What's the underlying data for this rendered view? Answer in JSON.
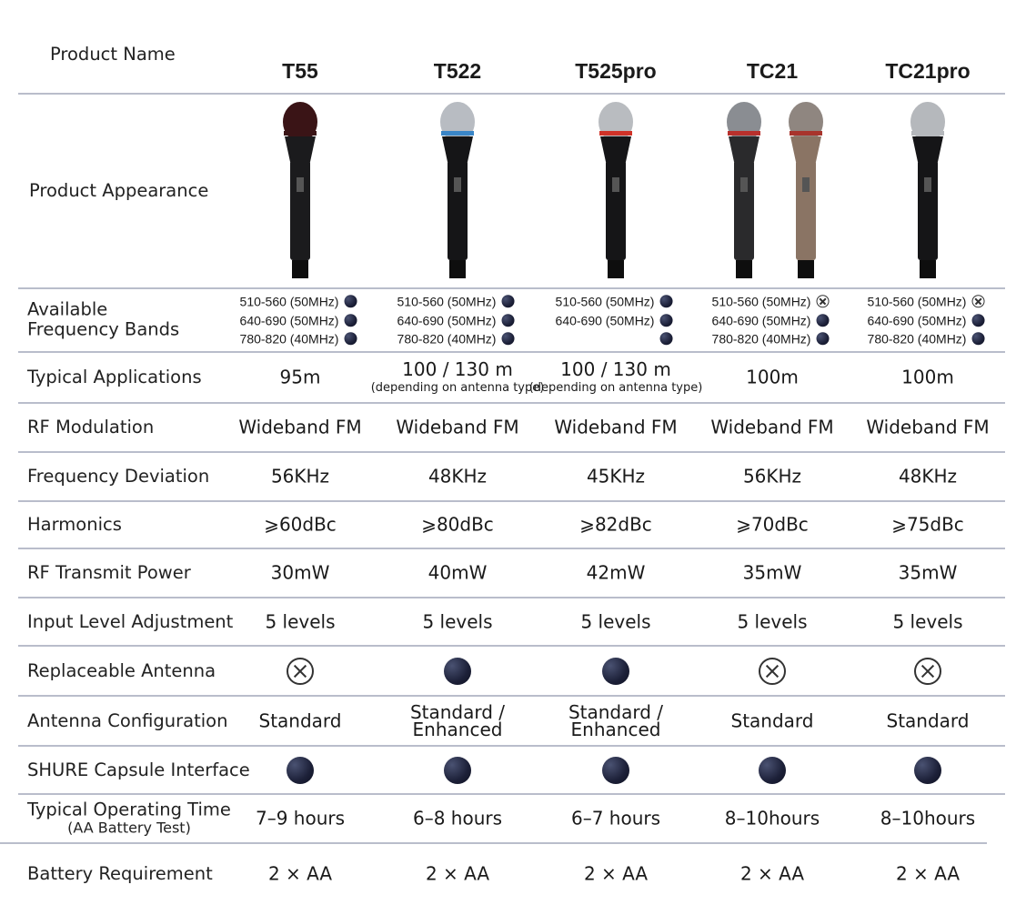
{
  "columns": [
    "T55",
    "T522",
    "T525pro",
    "TC21",
    "TC21pro"
  ],
  "header_label": "Product Name",
  "appearance_label": "Product Appearance",
  "mics": [
    [
      {
        "grille": "#3a1416",
        "ring": "#3a1416",
        "body": "#1b1b1d"
      }
    ],
    [
      {
        "grille": "#b8bcc2",
        "ring": "#3a86c8",
        "body": "#151517"
      }
    ],
    [
      {
        "grille": "#b9bcc0",
        "ring": "#d03228",
        "body": "#151517"
      }
    ],
    [
      {
        "grille": "#8a8d92",
        "ring": "#b8302c",
        "body": "#2a2a2c"
      },
      {
        "grille": "#8f8680",
        "ring": "#a8342c",
        "body": "#8a7464"
      }
    ],
    [
      {
        "grille": "#b5b8bc",
        "ring": "#b5b8bc",
        "body": "#151517"
      }
    ]
  ],
  "freq": {
    "label": "Available\nFrequency Bands",
    "values": [
      [
        {
          "t": "510-560 (50MHz)",
          "s": "dot"
        },
        {
          "t": "640-690 (50MHz)",
          "s": "dot"
        },
        {
          "t": "780-820 (40MHz)",
          "s": "dot"
        }
      ],
      [
        {
          "t": "510-560 (50MHz)",
          "s": "dot"
        },
        {
          "t": "640-690 (50MHz)",
          "s": "dot"
        },
        {
          "t": "780-820 (40MHz)",
          "s": "dot"
        }
      ],
      [
        {
          "t": "510-560 (50MHz)",
          "s": "dot"
        },
        {
          "t": "640-690 (50MHz)",
          "s": "dot"
        },
        {
          "t": "",
          "s": "dot"
        }
      ],
      [
        {
          "t": "510-560 (50MHz)",
          "s": "cross"
        },
        {
          "t": "640-690 (50MHz)",
          "s": "dot"
        },
        {
          "t": "780-820 (40MHz)",
          "s": "dot"
        }
      ],
      [
        {
          "t": "510-560 (50MHz)",
          "s": "cross"
        },
        {
          "t": "640-690 (50MHz)",
          "s": "dot"
        },
        {
          "t": "780-820 (40MHz)",
          "s": "dot"
        }
      ]
    ]
  },
  "rows": [
    {
      "label": "Typical Applications",
      "values": [
        {
          "t": "95m"
        },
        {
          "t": "100 / 130 m",
          "sub": "(depending on antenna type)"
        },
        {
          "t": "100 / 130 m",
          "sub": "(depending on antenna type)"
        },
        {
          "t": "100m"
        },
        {
          "t": "100m"
        }
      ]
    },
    {
      "label": "RF Modulation",
      "values": [
        {
          "t": "Wideband FM"
        },
        {
          "t": "Wideband FM"
        },
        {
          "t": "Wideband FM"
        },
        {
          "t": "Wideband FM"
        },
        {
          "t": "Wideband FM"
        }
      ]
    },
    {
      "label": "Frequency Deviation",
      "values": [
        {
          "t": "56KHz"
        },
        {
          "t": "48KHz"
        },
        {
          "t": "45KHz"
        },
        {
          "t": "56KHz"
        },
        {
          "t": "48KHz"
        }
      ]
    },
    {
      "label": "Harmonics",
      "values": [
        {
          "t": "⩾60dBc"
        },
        {
          "t": "⩾80dBc"
        },
        {
          "t": "⩾82dBc"
        },
        {
          "t": "⩾70dBc"
        },
        {
          "t": "⩾75dBc"
        }
      ]
    },
    {
      "label": "RF Transmit Power",
      "values": [
        {
          "t": "30mW"
        },
        {
          "t": "40mW"
        },
        {
          "t": "42mW"
        },
        {
          "t": "35mW"
        },
        {
          "t": "35mW"
        }
      ]
    },
    {
      "label": "Input Level Adjustment",
      "values": [
        {
          "t": "5 levels"
        },
        {
          "t": "5 levels"
        },
        {
          "t": "5 levels"
        },
        {
          "t": "5 levels"
        },
        {
          "t": "5 levels"
        }
      ]
    },
    {
      "label": "Replaceable Antenna",
      "values": [
        {
          "s": "cross"
        },
        {
          "s": "dot"
        },
        {
          "s": "dot"
        },
        {
          "s": "cross"
        },
        {
          "s": "cross"
        }
      ]
    },
    {
      "label": "Antenna Configuration",
      "values": [
        {
          "t": "Standard"
        },
        {
          "t": "Standard /",
          "t2": "Enhanced"
        },
        {
          "t": "Standard /",
          "t2": "Enhanced"
        },
        {
          "t": "Standard"
        },
        {
          "t": "Standard"
        }
      ]
    },
    {
      "label": "SHURE Capsule Interface",
      "values": [
        {
          "s": "dot"
        },
        {
          "s": "dot"
        },
        {
          "s": "dot"
        },
        {
          "s": "dot"
        },
        {
          "s": "dot"
        }
      ]
    },
    {
      "label": "Typical Operating Time",
      "label_sub": "(AA Battery Test)",
      "values": [
        {
          "t": "7–9 hours"
        },
        {
          "t": "6–8 hours"
        },
        {
          "t": "6–7 hours"
        },
        {
          "t": "8–10hours"
        },
        {
          "t": "8–10hours"
        }
      ]
    },
    {
      "label": "Battery Requirement",
      "values": [
        {
          "t": "2 × AA"
        },
        {
          "t": "2 × AA"
        },
        {
          "t": "2 × AA"
        },
        {
          "t": "2 × AA"
        },
        {
          "t": "2 × AA"
        }
      ]
    }
  ]
}
